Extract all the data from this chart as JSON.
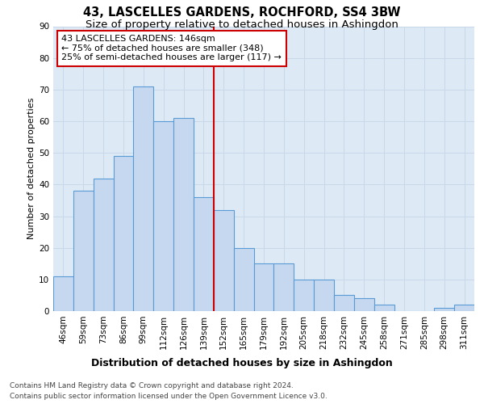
{
  "title": "43, LASCELLES GARDENS, ROCHFORD, SS4 3BW",
  "subtitle": "Size of property relative to detached houses in Ashingdon",
  "xlabel": "Distribution of detached houses by size in Ashingdon",
  "ylabel": "Number of detached properties",
  "categories": [
    "46sqm",
    "59sqm",
    "73sqm",
    "86sqm",
    "99sqm",
    "112sqm",
    "126sqm",
    "139sqm",
    "152sqm",
    "165sqm",
    "179sqm",
    "192sqm",
    "205sqm",
    "218sqm",
    "232sqm",
    "245sqm",
    "258sqm",
    "271sqm",
    "285sqm",
    "298sqm",
    "311sqm"
  ],
  "values": [
    11,
    38,
    42,
    49,
    71,
    60,
    61,
    36,
    32,
    20,
    15,
    15,
    10,
    10,
    5,
    4,
    2,
    0,
    0,
    1,
    2
  ],
  "bar_color": "#c5d8ef",
  "bar_edge_color": "#5b9bd5",
  "annotation_line1": "43 LASCELLES GARDENS: 146sqm",
  "annotation_line2": "← 75% of detached houses are smaller (348)",
  "annotation_line3": "25% of semi-detached houses are larger (117) →",
  "annotation_box_color": "#ffffff",
  "annotation_box_edge": "#cc0000",
  "vline_color": "#cc0000",
  "vline_pos": 7.5,
  "ylim": [
    0,
    90
  ],
  "yticks": [
    0,
    10,
    20,
    30,
    40,
    50,
    60,
    70,
    80,
    90
  ],
  "grid_color": "#c8d8e8",
  "bg_color": "#ddeaf5",
  "fig_bg_color": "#ffffff",
  "footer1": "Contains HM Land Registry data © Crown copyright and database right 2024.",
  "footer2": "Contains public sector information licensed under the Open Government Licence v3.0.",
  "title_fontsize": 10.5,
  "subtitle_fontsize": 9.5,
  "xlabel_fontsize": 9,
  "ylabel_fontsize": 8,
  "tick_fontsize": 7.5,
  "annotation_fontsize": 8,
  "footer_fontsize": 6.5
}
